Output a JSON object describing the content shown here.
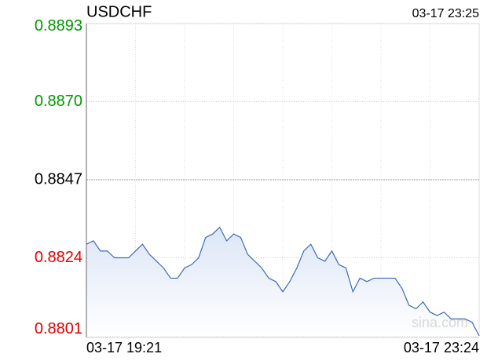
{
  "chart_data": {
    "type": "line",
    "title": "USDCHF",
    "timestamp": "03-17 23:25",
    "watermark": "sina.com",
    "color": "#3c6ab5",
    "area_color": "#e4ecf8",
    "up_color": "#009900",
    "down_color": "#e00000",
    "grid": true,
    "ylim": [
      0.8801,
      0.8893
    ],
    "yticks": [
      {
        "value": 0.8801,
        "label": "0.8801"
      },
      {
        "value": 0.8824,
        "label": "0.8824"
      },
      {
        "value": 0.8847,
        "label": "0.8847"
      },
      {
        "value": 0.887,
        "label": "0.8870"
      },
      {
        "value": 0.8893,
        "label": "0.8893"
      }
    ],
    "categories": [
      "03-17 19:21",
      null,
      null,
      null,
      null,
      null,
      null,
      null,
      null,
      null,
      null,
      null,
      null,
      null,
      null,
      null,
      null,
      null,
      null,
      null,
      null,
      null,
      null,
      null,
      null,
      null,
      null,
      null,
      null,
      null,
      null,
      null,
      null,
      null,
      null,
      null,
      null,
      null,
      null,
      null,
      null,
      null,
      null,
      null,
      null,
      null,
      null,
      null,
      null,
      null,
      null,
      null,
      null,
      null,
      null,
      null,
      "03-17 23:24"
    ],
    "values": [
      0.8828,
      0.8829,
      0.8826,
      0.8826,
      0.8824,
      0.8824,
      0.8824,
      0.8826,
      0.8828,
      0.8825,
      0.8823,
      0.8821,
      0.8818,
      0.8818,
      0.8821,
      0.8822,
      0.8824,
      0.883,
      0.8831,
      0.8833,
      0.8829,
      0.8831,
      0.883,
      0.8825,
      0.8823,
      0.8821,
      0.8818,
      0.8817,
      0.8814,
      0.8817,
      0.8821,
      0.8826,
      0.8828,
      0.8824,
      0.8823,
      0.8826,
      0.8822,
      0.8821,
      0.8814,
      0.8818,
      0.8817,
      0.8818,
      0.8818,
      0.8818,
      0.8818,
      0.8815,
      0.881,
      0.8809,
      0.8811,
      0.8808,
      0.8807,
      0.8808,
      0.8806,
      0.8806,
      0.8806,
      0.8805,
      0.8801
    ]
  }
}
